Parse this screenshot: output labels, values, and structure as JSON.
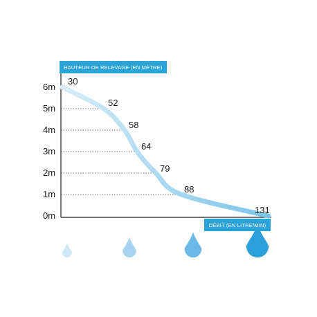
{
  "chart_data": {
    "type": "line",
    "ylabel": "HAUTEUR DE RELEVAGE (EN MÈTRE)",
    "xlabel": "DÉBIT (EN LITRE/MIN)",
    "y_ticks": [
      "0m",
      "1m",
      "2m",
      "3m",
      "4m",
      "5m",
      "6m"
    ],
    "ylim": [
      0,
      6
    ],
    "series": [
      {
        "points": [
          {
            "y": 6,
            "label": "30"
          },
          {
            "y": 5,
            "label": "52"
          },
          {
            "y": 4,
            "label": "58"
          },
          {
            "y": 3,
            "label": "64"
          },
          {
            "y": 2,
            "label": "79"
          },
          {
            "y": 1,
            "label": "88"
          },
          {
            "y": 0,
            "label": "131"
          }
        ]
      }
    ],
    "grid": "dotted horizontal lines from axis to curve",
    "icons": [
      "water-drop-icon",
      "water-drop-icon",
      "water-drop-icon",
      "water-drop-icon"
    ],
    "colors": {
      "curve_light": "#d8ecf8",
      "curve_dark": "#7cc4ea",
      "label_box": "#2aa3d8",
      "drops": [
        "#cfe7f6",
        "#a6d4f0",
        "#6bb8e6",
        "#2a9fda"
      ]
    }
  }
}
